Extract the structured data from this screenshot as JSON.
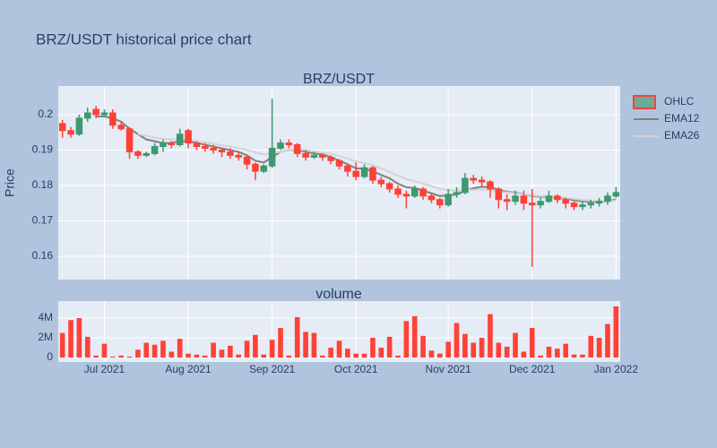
{
  "title": "BRZ/USDT historical price chart",
  "chart_data": [
    {
      "type": "candlestick",
      "title": "BRZ/USDT",
      "y_label": "Price",
      "name": "OHLC",
      "increasing_color": "#3d9970",
      "decreasing_color": "#ff4136",
      "open": [
        0.1975,
        0.1955,
        0.1945,
        0.199,
        0.2015,
        0.2,
        0.2005,
        0.197,
        0.196,
        0.1895,
        0.1885,
        0.189,
        0.191,
        0.192,
        0.1915,
        0.1955,
        0.192,
        0.191,
        0.1905,
        0.19,
        0.1895,
        0.1885,
        0.188,
        0.186,
        0.184,
        0.1855,
        0.1905,
        0.192,
        0.1915,
        0.189,
        0.188,
        0.1885,
        0.188,
        0.187,
        0.1855,
        0.184,
        0.1825,
        0.185,
        0.1815,
        0.1805,
        0.179,
        0.1775,
        0.177,
        0.179,
        0.177,
        0.176,
        0.1745,
        0.1775,
        0.178,
        0.182,
        0.1815,
        0.181,
        0.179,
        0.176,
        0.1755,
        0.177,
        0.175,
        0.1745,
        0.1755,
        0.177,
        0.176,
        0.175,
        0.174,
        0.1745,
        0.175,
        0.1755,
        0.177
      ],
      "high": [
        0.1985,
        0.1965,
        0.2,
        0.202,
        0.2025,
        0.2015,
        0.2015,
        0.198,
        0.1965,
        0.19,
        0.1895,
        0.192,
        0.193,
        0.1925,
        0.196,
        0.196,
        0.1925,
        0.192,
        0.1915,
        0.1905,
        0.1905,
        0.1895,
        0.1885,
        0.1865,
        0.186,
        0.2045,
        0.193,
        0.193,
        0.192,
        0.19,
        0.1895,
        0.189,
        0.1885,
        0.1875,
        0.186,
        0.1865,
        0.186,
        0.1855,
        0.1825,
        0.181,
        0.18,
        0.1785,
        0.18,
        0.1795,
        0.178,
        0.1765,
        0.179,
        0.1795,
        0.1835,
        0.183,
        0.1825,
        0.1815,
        0.1795,
        0.1775,
        0.1785,
        0.1785,
        0.179,
        0.1765,
        0.1785,
        0.1775,
        0.1765,
        0.1755,
        0.1755,
        0.176,
        0.1765,
        0.178,
        0.1795
      ],
      "low": [
        0.1935,
        0.1935,
        0.194,
        0.198,
        0.199,
        0.1995,
        0.196,
        0.1955,
        0.1875,
        0.1875,
        0.188,
        0.1885,
        0.1895,
        0.1905,
        0.191,
        0.1905,
        0.19,
        0.1895,
        0.189,
        0.188,
        0.1875,
        0.187,
        0.1845,
        0.1815,
        0.1835,
        0.185,
        0.19,
        0.1905,
        0.188,
        0.187,
        0.1875,
        0.187,
        0.186,
        0.1845,
        0.1825,
        0.1815,
        0.182,
        0.1805,
        0.1795,
        0.178,
        0.1765,
        0.1735,
        0.1765,
        0.176,
        0.175,
        0.1735,
        0.174,
        0.1765,
        0.1775,
        0.1805,
        0.1795,
        0.1765,
        0.1735,
        0.173,
        0.1745,
        0.173,
        0.157,
        0.1735,
        0.175,
        0.175,
        0.1735,
        0.173,
        0.173,
        0.1735,
        0.174,
        0.1745,
        0.1765
      ],
      "close": [
        0.1955,
        0.1945,
        0.199,
        0.2005,
        0.2,
        0.2005,
        0.197,
        0.196,
        0.1895,
        0.1885,
        0.189,
        0.191,
        0.192,
        0.1915,
        0.1945,
        0.192,
        0.191,
        0.1905,
        0.19,
        0.1895,
        0.1885,
        0.188,
        0.186,
        0.184,
        0.1855,
        0.1905,
        0.192,
        0.1915,
        0.189,
        0.188,
        0.1885,
        0.188,
        0.187,
        0.1855,
        0.184,
        0.1825,
        0.185,
        0.1815,
        0.1805,
        0.179,
        0.1775,
        0.177,
        0.179,
        0.177,
        0.176,
        0.1745,
        0.1775,
        0.178,
        0.182,
        0.1815,
        0.181,
        0.179,
        0.176,
        0.1755,
        0.177,
        0.175,
        0.1745,
        0.1755,
        0.177,
        0.176,
        0.175,
        0.174,
        0.1745,
        0.175,
        0.1755,
        0.177,
        0.178
      ],
      "lines": [
        {
          "name": "EMA12",
          "color": "#808080",
          "values": [
            null,
            null,
            null,
            null,
            0.1995,
            0.1995,
            0.199,
            0.198,
            0.196,
            0.1945,
            0.193,
            0.1925,
            0.192,
            0.192,
            0.1925,
            0.1925,
            0.192,
            0.1915,
            0.191,
            0.1905,
            0.19,
            0.1895,
            0.1885,
            0.187,
            0.1865,
            0.188,
            0.1895,
            0.19,
            0.19,
            0.1895,
            0.189,
            0.1888,
            0.188,
            0.187,
            0.186,
            0.1848,
            0.1848,
            0.184,
            0.183,
            0.182,
            0.1805,
            0.1795,
            0.1793,
            0.1785,
            0.1778,
            0.177,
            0.1772,
            0.1774,
            0.1785,
            0.1792,
            0.1796,
            0.1795,
            0.1788,
            0.1782,
            0.178,
            0.1775,
            0.177,
            0.1768,
            0.1768,
            0.1766,
            0.1763,
            0.1758,
            0.1755,
            0.1754,
            0.1754,
            0.1756,
            0.176
          ]
        },
        {
          "name": "EMA26",
          "color": "#d3d3d3",
          "values": [
            null,
            null,
            null,
            null,
            null,
            null,
            null,
            null,
            null,
            0.1945,
            0.194,
            0.1935,
            0.1932,
            0.193,
            0.193,
            0.193,
            0.1925,
            0.1922,
            0.1918,
            0.1914,
            0.191,
            0.1905,
            0.19,
            0.1893,
            0.1888,
            0.189,
            0.1895,
            0.19,
            0.1902,
            0.19,
            0.1896,
            0.1893,
            0.189,
            0.1883,
            0.1876,
            0.1868,
            0.1864,
            0.1857,
            0.1848,
            0.1838,
            0.1828,
            0.1818,
            0.1812,
            0.1805,
            0.1798,
            0.179,
            0.1787,
            0.1785,
            0.1787,
            0.1788,
            0.1788,
            0.1787,
            0.1783,
            0.178,
            0.1778,
            0.1775,
            0.1772,
            0.177,
            0.1769,
            0.1767,
            0.1765,
            0.1762,
            0.1759,
            0.1757,
            0.1756,
            0.1756,
            0.1757
          ]
        }
      ],
      "ylim": [
        0.1534,
        0.2081
      ],
      "yticks": [
        0.16,
        0.17,
        0.18,
        0.19,
        0.2
      ],
      "grid": true,
      "legend": "top-right"
    },
    {
      "type": "bar",
      "title": "volume",
      "color": "#ff4136",
      "categories": [
        null,
        null,
        null,
        null,
        null,
        "Jul 2021",
        null,
        null,
        null,
        null,
        null,
        null,
        null,
        null,
        null,
        "Aug 2021",
        null,
        null,
        null,
        null,
        null,
        null,
        null,
        null,
        null,
        "Sep 2021",
        null,
        null,
        null,
        null,
        null,
        null,
        null,
        null,
        null,
        "Oct 2021",
        null,
        null,
        null,
        null,
        null,
        null,
        null,
        null,
        null,
        null,
        "Nov 2021",
        null,
        null,
        null,
        null,
        null,
        null,
        null,
        null,
        null,
        "Dec 2021",
        null,
        null,
        null,
        null,
        null,
        null,
        null,
        null,
        null,
        "Jan 2022"
      ],
      "values": [
        2500000,
        3800000,
        4000000,
        2100000,
        200000,
        1400000,
        100000,
        200000,
        100000,
        800000,
        1500000,
        1300000,
        1700000,
        600000,
        1900000,
        400000,
        300000,
        200000,
        1500000,
        800000,
        1200000,
        300000,
        1700000,
        2300000,
        300000,
        1800000,
        3000000,
        200000,
        4100000,
        2600000,
        2500000,
        200000,
        1000000,
        1700000,
        900000,
        400000,
        400000,
        2000000,
        1000000,
        2100000,
        200000,
        3700000,
        4200000,
        2200000,
        700000,
        400000,
        1600000,
        3500000,
        2400000,
        1500000,
        2000000,
        4400000,
        1500000,
        1100000,
        2500000,
        600000,
        3000000,
        200000,
        1100000,
        900000,
        1400000,
        300000,
        300000,
        2200000,
        2000000,
        3400000,
        5200000
      ],
      "ylim": [
        -450000,
        5730000
      ],
      "yticks": [
        {
          "value": 0,
          "label": "0"
        },
        {
          "value": 2000000,
          "label": "2M"
        },
        {
          "value": 4000000,
          "label": "4M"
        }
      ],
      "grid": true
    }
  ]
}
